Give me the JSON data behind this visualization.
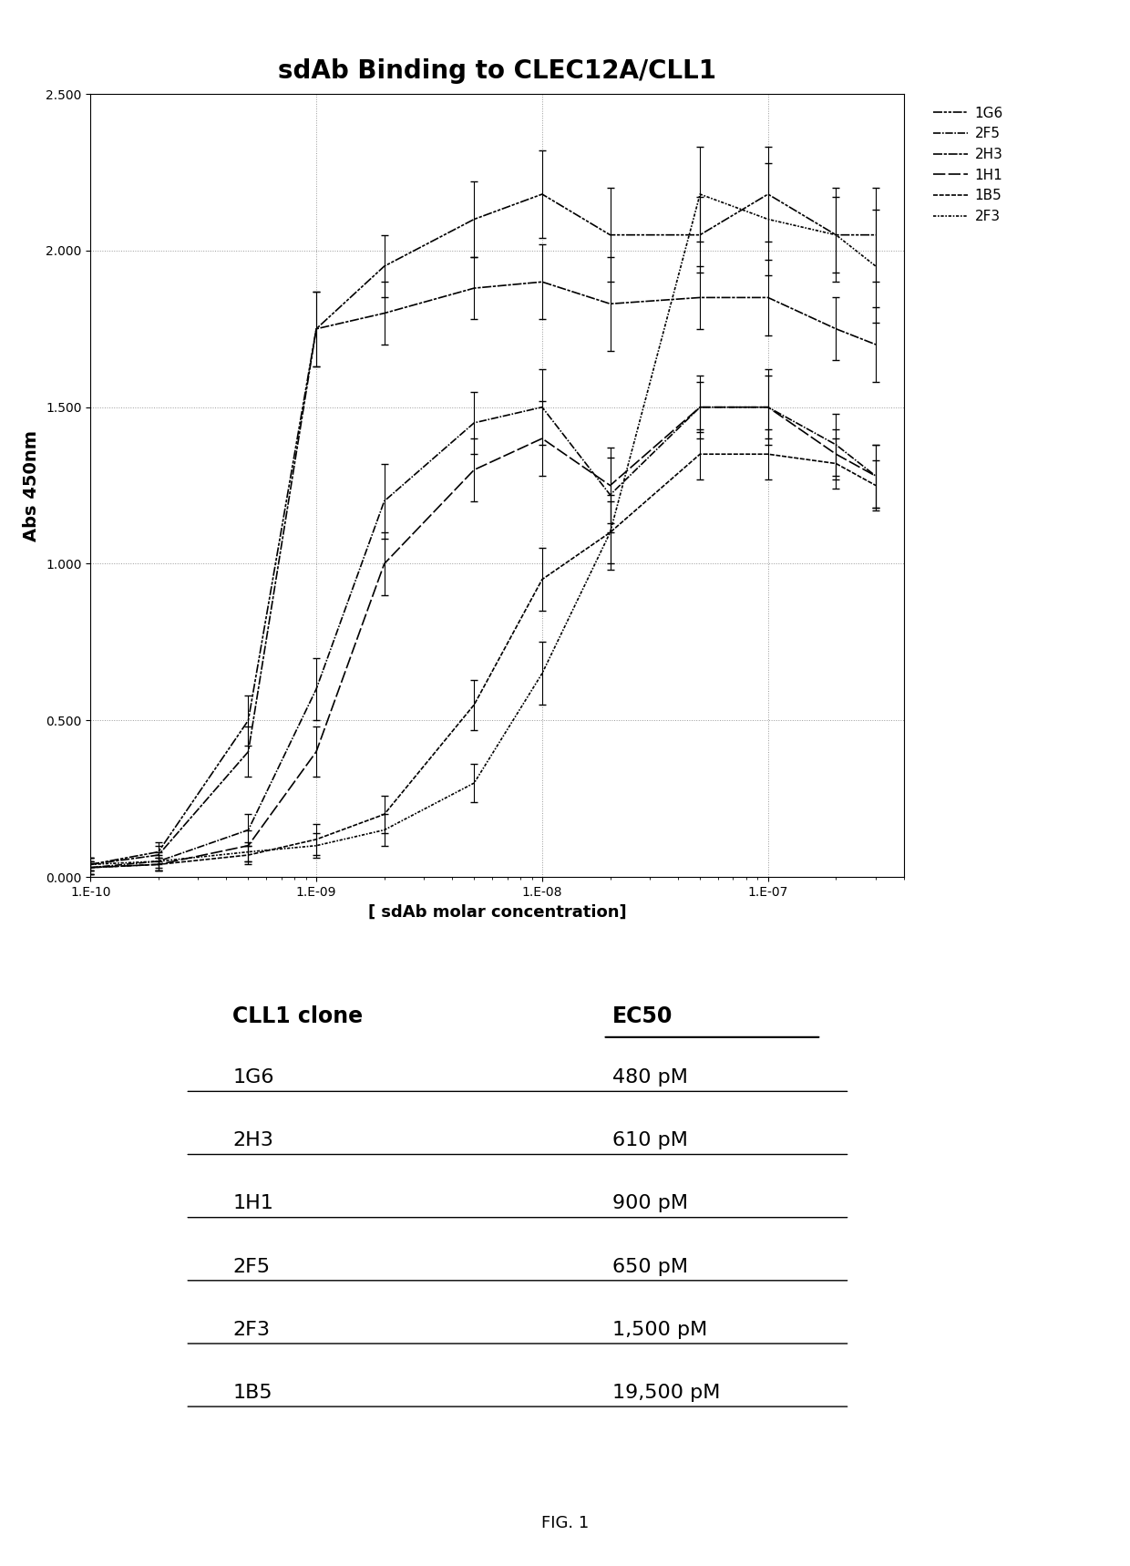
{
  "title": "sdAb Binding to CLEC12A/CLL1",
  "xlabel": "[ sdAb molar concentration]",
  "ylabel": "Abs 450nm",
  "ylim": [
    0,
    2.5
  ],
  "ytick_labels": [
    "0.000",
    "0.500",
    "1.000",
    "1.500",
    "2.000",
    "2.500"
  ],
  "ytick_vals": [
    0.0,
    0.5,
    1.0,
    1.5,
    2.0,
    2.5
  ],
  "xtick_labels": [
    "1.E-10",
    "1.E-09",
    "1.E-08",
    "1.E-07"
  ],
  "background_color": "#ffffff",
  "curve_order": [
    "1G6",
    "2F5",
    "2H3",
    "1H1",
    "1B5",
    "2F3"
  ],
  "curves": {
    "1G6": {
      "x": [
        1e-10,
        2e-10,
        5e-10,
        1e-09,
        2e-09,
        5e-09,
        1e-08,
        2e-08,
        5e-08,
        1e-07,
        2e-07,
        3e-07
      ],
      "y": [
        0.04,
        0.08,
        0.5,
        1.75,
        1.95,
        2.1,
        2.18,
        2.05,
        2.05,
        2.18,
        2.05,
        2.05
      ],
      "ye": [
        0.02,
        0.03,
        0.08,
        0.12,
        0.1,
        0.12,
        0.14,
        0.15,
        0.12,
        0.15,
        0.12,
        0.15
      ],
      "zorder": 6
    },
    "2H3": {
      "x": [
        1e-10,
        2e-10,
        5e-10,
        1e-09,
        2e-09,
        5e-09,
        1e-08,
        2e-08,
        5e-08,
        1e-07,
        2e-07,
        3e-07
      ],
      "y": [
        0.04,
        0.07,
        0.4,
        1.75,
        1.8,
        1.88,
        1.9,
        1.83,
        1.85,
        1.85,
        1.75,
        1.7
      ],
      "ye": [
        0.02,
        0.03,
        0.08,
        0.12,
        0.1,
        0.1,
        0.12,
        0.15,
        0.1,
        0.12,
        0.1,
        0.12
      ],
      "zorder": 5
    },
    "2F5": {
      "x": [
        1e-10,
        2e-10,
        5e-10,
        1e-09,
        2e-09,
        5e-09,
        1e-08,
        2e-08,
        5e-08,
        1e-07,
        2e-07,
        3e-07
      ],
      "y": [
        0.03,
        0.05,
        0.15,
        0.6,
        1.2,
        1.45,
        1.5,
        1.22,
        1.5,
        1.5,
        1.38,
        1.28
      ],
      "ye": [
        0.02,
        0.03,
        0.05,
        0.1,
        0.12,
        0.1,
        0.12,
        0.12,
        0.1,
        0.12,
        0.1,
        0.1
      ],
      "zorder": 4
    },
    "1H1": {
      "x": [
        1e-10,
        2e-10,
        5e-10,
        1e-09,
        2e-09,
        5e-09,
        1e-08,
        2e-08,
        5e-08,
        1e-07,
        2e-07,
        3e-07
      ],
      "y": [
        0.03,
        0.04,
        0.1,
        0.4,
        1.0,
        1.3,
        1.4,
        1.25,
        1.5,
        1.5,
        1.35,
        1.28
      ],
      "ye": [
        0.02,
        0.02,
        0.05,
        0.08,
        0.1,
        0.1,
        0.12,
        0.12,
        0.08,
        0.1,
        0.08,
        0.1
      ],
      "zorder": 3
    },
    "1B5": {
      "x": [
        1e-10,
        2e-10,
        5e-10,
        1e-09,
        2e-09,
        5e-09,
        1e-08,
        2e-08,
        5e-08,
        1e-07,
        2e-07,
        3e-07
      ],
      "y": [
        0.03,
        0.04,
        0.07,
        0.12,
        0.2,
        0.55,
        0.95,
        1.1,
        1.35,
        1.35,
        1.32,
        1.25
      ],
      "ye": [
        0.02,
        0.02,
        0.03,
        0.05,
        0.06,
        0.08,
        0.1,
        0.1,
        0.08,
        0.08,
        0.08,
        0.08
      ],
      "zorder": 2
    },
    "2F3": {
      "x": [
        1e-10,
        2e-10,
        5e-10,
        1e-09,
        2e-09,
        5e-09,
        1e-08,
        2e-08,
        5e-08,
        1e-07,
        2e-07,
        3e-07
      ],
      "y": [
        0.04,
        0.05,
        0.08,
        0.1,
        0.15,
        0.3,
        0.65,
        1.1,
        2.18,
        2.1,
        2.05,
        1.95
      ],
      "ye": [
        0.02,
        0.02,
        0.03,
        0.04,
        0.05,
        0.06,
        0.1,
        0.12,
        0.15,
        0.18,
        0.15,
        0.18
      ],
      "zorder": 1
    }
  },
  "table_header": [
    "CLL1 clone",
    "EC50"
  ],
  "table_rows": [
    [
      "1G6",
      "480 pM"
    ],
    [
      "2H3",
      "610 pM"
    ],
    [
      "1H1",
      "900 pM"
    ],
    [
      "2F5",
      "650 pM"
    ],
    [
      "2F3",
      "1,500 pM"
    ],
    [
      "1B5",
      "19,500 pM"
    ]
  ],
  "fig1_label": "FIG. 1"
}
